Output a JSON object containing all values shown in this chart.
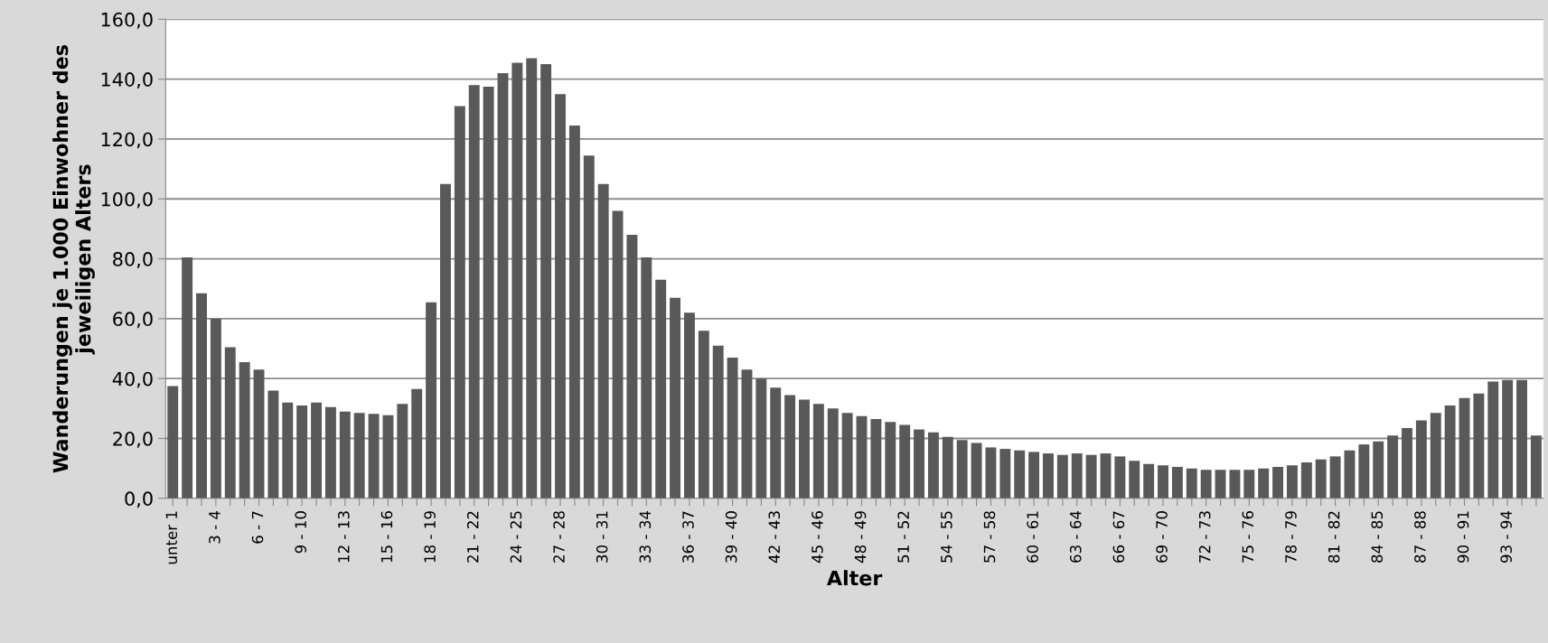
{
  "chart_data": {
    "type": "bar",
    "xlabel": "Alter",
    "ylabel": "Wanderungen je 1.000 Einwohner des\njeweiligen Alters",
    "categories": [
      "unter 1",
      null,
      null,
      "3 - 4",
      null,
      null,
      "6 - 7",
      null,
      null,
      "9 - 10",
      null,
      null,
      "12 - 13",
      null,
      null,
      "15 - 16",
      null,
      null,
      "18 - 19",
      null,
      null,
      "21 - 22",
      null,
      null,
      "24 - 25",
      null,
      null,
      "27 - 28",
      null,
      null,
      "30 - 31",
      null,
      null,
      "33 - 34",
      null,
      null,
      "36 - 37",
      null,
      null,
      "39 - 40",
      null,
      null,
      "42 - 43",
      null,
      null,
      "45 - 46",
      null,
      null,
      "48 - 49",
      null,
      null,
      "51 - 52",
      null,
      null,
      "54 - 55",
      null,
      null,
      "57 - 58",
      null,
      null,
      "60 - 61",
      null,
      null,
      "63 - 64",
      null,
      null,
      "66 - 67",
      null,
      null,
      "69 - 70",
      null,
      null,
      "72 - 73",
      null,
      null,
      "75 - 76",
      null,
      null,
      "78 - 79",
      null,
      null,
      "81 - 82",
      null,
      null,
      "84 - 85",
      null,
      null,
      "87 - 88",
      null,
      null,
      "90 - 91",
      null,
      null,
      "93 - 94",
      null,
      null
    ],
    "values": [
      37.5,
      80.5,
      68.5,
      60,
      50.5,
      45.5,
      43,
      36,
      32,
      31,
      32,
      30.5,
      29,
      28.5,
      28.2,
      27.8,
      31.5,
      36.5,
      65.5,
      105,
      131,
      138,
      137.5,
      142,
      145.5,
      147,
      145,
      135,
      124.5,
      114.5,
      105,
      96,
      88,
      80.5,
      73,
      67,
      62,
      56,
      51,
      47,
      43,
      40,
      37,
      34.5,
      33,
      31.5,
      30,
      28.5,
      27.5,
      26.5,
      25.5,
      24.5,
      23,
      22,
      20.5,
      19.5,
      18.5,
      17,
      16.5,
      16,
      15.5,
      15,
      14.5,
      15,
      14.5,
      15,
      14,
      12.5,
      11.5,
      11,
      10.5,
      10,
      9.5,
      9.5,
      9.5,
      9.5,
      10,
      10.5,
      11,
      12,
      13,
      14,
      16,
      18,
      19,
      21,
      23.5,
      26,
      28.5,
      31,
      33.5,
      35,
      39,
      39.5,
      39.5,
      21
    ],
    "color": "#595959",
    "ylim": [
      0,
      160
    ],
    "yticks": [
      {
        "value": 0,
        "label": "0,0"
      },
      {
        "value": 20,
        "label": "20,0"
      },
      {
        "value": 40,
        "label": "40,0"
      },
      {
        "value": 60,
        "label": "60,0"
      },
      {
        "value": 80,
        "label": "80,0"
      },
      {
        "value": 100,
        "label": "100,0"
      },
      {
        "value": 120,
        "label": "120,0"
      },
      {
        "value": 140,
        "label": "140,0"
      },
      {
        "value": 160,
        "label": "160,0"
      }
    ],
    "grid": "y",
    "legend": false
  }
}
